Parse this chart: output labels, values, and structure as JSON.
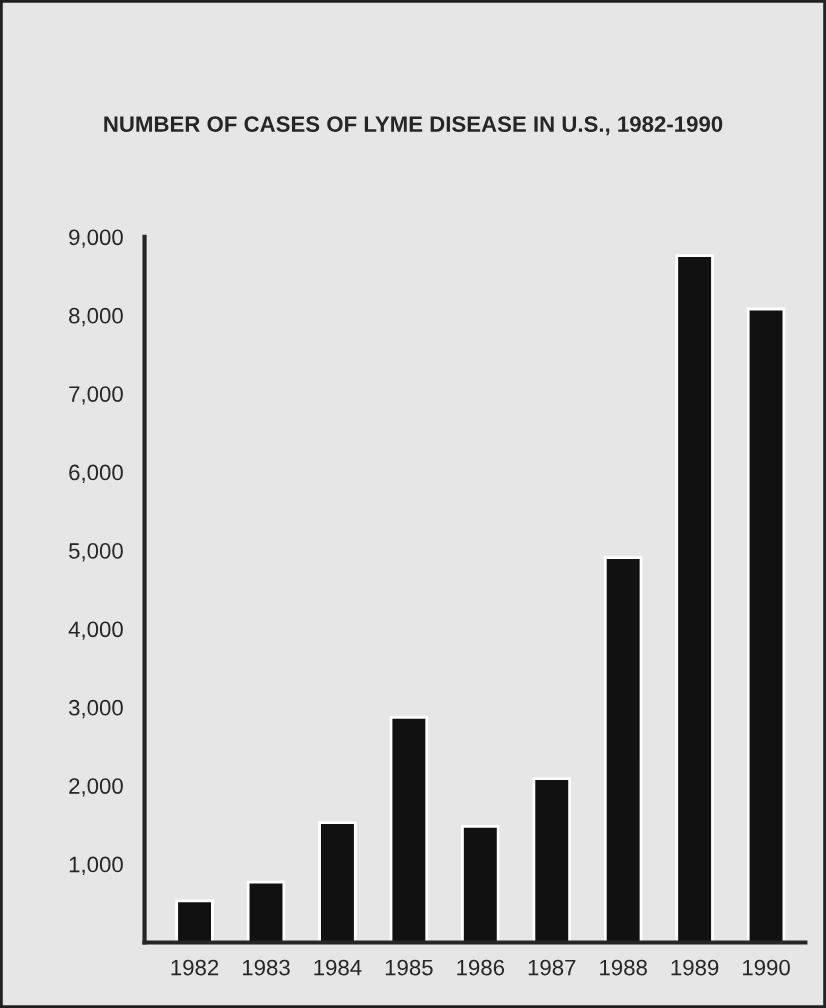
{
  "chart_data": {
    "type": "bar",
    "title": "NUMBER OF CASES OF LYME DISEASE IN U.S., 1982-1990",
    "categories": [
      "1982",
      "1983",
      "1984",
      "1985",
      "1986",
      "1987",
      "1988",
      "1989",
      "1990"
    ],
    "values": [
      530,
      770,
      1530,
      2870,
      1480,
      2090,
      4910,
      8760,
      8080
    ],
    "color": "#111111",
    "ylim": [
      0,
      9000
    ],
    "yticks": [
      {
        "value": 0,
        "label": null
      },
      {
        "value": 1000,
        "label": "1,000"
      },
      {
        "value": 2000,
        "label": "2,000"
      },
      {
        "value": 3000,
        "label": "3,000"
      },
      {
        "value": 4000,
        "label": "4,000"
      },
      {
        "value": 5000,
        "label": "5,000"
      },
      {
        "value": 6000,
        "label": "6,000"
      },
      {
        "value": 7000,
        "label": "7,000"
      },
      {
        "value": 8000,
        "label": "8,000"
      },
      {
        "value": 9000,
        "label": "9,000"
      }
    ],
    "grid": false
  }
}
